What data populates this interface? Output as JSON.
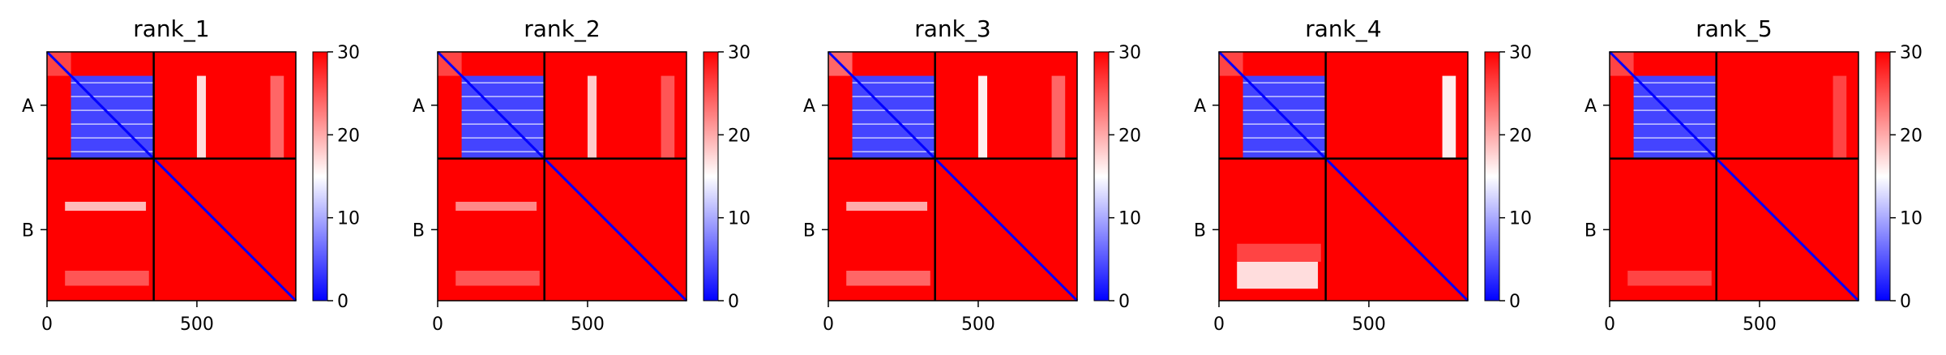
{
  "chart_data": [
    {
      "type": "heatmap",
      "title": "rank_1",
      "xlabel": "",
      "ylabel": "",
      "xlim": [
        0,
        830
      ],
      "x_ticks": [
        0,
        500
      ],
      "chain_boundary": 356,
      "chains": [
        "A",
        "B"
      ],
      "colorbar": {
        "min": 0,
        "max": 30,
        "ticks": [
          0,
          10,
          20,
          30
        ],
        "colormap": "bwr"
      },
      "regions": [
        {
          "chains": "A-A",
          "x_range": [
            80,
            356
          ],
          "y_range": [
            80,
            356
          ],
          "value": 4
        },
        {
          "chains": "A-A",
          "x_range": [
            0,
            80
          ],
          "y_range": [
            0,
            80
          ],
          "value": 26
        },
        {
          "chains": "A-B",
          "x_range": [
            500,
            530
          ],
          "y_range": [
            80,
            356
          ],
          "value": 17
        },
        {
          "chains": "A-B",
          "x_range": [
            745,
            790
          ],
          "y_range": [
            80,
            356
          ],
          "value": 24
        },
        {
          "chains": "B-A",
          "x_range": [
            60,
            330
          ],
          "y_range": [
            500,
            530
          ],
          "value": 19
        },
        {
          "chains": "B-A",
          "x_range": [
            60,
            340
          ],
          "y_range": [
            730,
            780
          ],
          "value": 25
        },
        {
          "chains": "off-diagonal background",
          "value": 30
        },
        {
          "chains": "diagonal",
          "value": 0
        }
      ]
    },
    {
      "type": "heatmap",
      "title": "rank_2",
      "xlabel": "",
      "ylabel": "",
      "xlim": [
        0,
        830
      ],
      "x_ticks": [
        0,
        500
      ],
      "chain_boundary": 356,
      "chains": [
        "A",
        "B"
      ],
      "colorbar": {
        "min": 0,
        "max": 30,
        "ticks": [
          0,
          10,
          20,
          30
        ],
        "colormap": "bwr"
      },
      "regions": [
        {
          "chains": "A-A",
          "x_range": [
            80,
            356
          ],
          "y_range": [
            80,
            356
          ],
          "value": 4
        },
        {
          "chains": "A-A",
          "x_range": [
            0,
            80
          ],
          "y_range": [
            0,
            80
          ],
          "value": 26
        },
        {
          "chains": "A-B",
          "x_range": [
            500,
            530
          ],
          "y_range": [
            80,
            356
          ],
          "value": 18
        },
        {
          "chains": "A-B",
          "x_range": [
            745,
            790
          ],
          "y_range": [
            80,
            356
          ],
          "value": 25
        },
        {
          "chains": "B-A",
          "x_range": [
            60,
            330
          ],
          "y_range": [
            500,
            530
          ],
          "value": 22
        },
        {
          "chains": "B-A",
          "x_range": [
            60,
            340
          ],
          "y_range": [
            730,
            780
          ],
          "value": 25
        },
        {
          "chains": "off-diagonal background",
          "value": 30
        },
        {
          "chains": "diagonal",
          "value": 0
        }
      ]
    },
    {
      "type": "heatmap",
      "title": "rank_3",
      "xlabel": "",
      "ylabel": "",
      "xlim": [
        0,
        830
      ],
      "x_ticks": [
        0,
        500
      ],
      "chain_boundary": 356,
      "chains": [
        "A",
        "B"
      ],
      "colorbar": {
        "min": 0,
        "max": 30,
        "ticks": [
          0,
          10,
          20,
          30
        ],
        "colormap": "bwr"
      },
      "regions": [
        {
          "chains": "A-A",
          "x_range": [
            80,
            356
          ],
          "y_range": [
            80,
            356
          ],
          "value": 4
        },
        {
          "chains": "A-A",
          "x_range": [
            0,
            80
          ],
          "y_range": [
            0,
            80
          ],
          "value": 24
        },
        {
          "chains": "A-B",
          "x_range": [
            500,
            530
          ],
          "y_range": [
            80,
            356
          ],
          "value": 16
        },
        {
          "chains": "A-B",
          "x_range": [
            745,
            790
          ],
          "y_range": [
            80,
            356
          ],
          "value": 24
        },
        {
          "chains": "B-A",
          "x_range": [
            60,
            330
          ],
          "y_range": [
            500,
            530
          ],
          "value": 20
        },
        {
          "chains": "B-A",
          "x_range": [
            60,
            340
          ],
          "y_range": [
            730,
            780
          ],
          "value": 24
        },
        {
          "chains": "off-diagonal background",
          "value": 30
        },
        {
          "chains": "diagonal",
          "value": 0
        }
      ]
    },
    {
      "type": "heatmap",
      "title": "rank_4",
      "xlabel": "",
      "ylabel": "",
      "xlim": [
        0,
        830
      ],
      "x_ticks": [
        0,
        500
      ],
      "chain_boundary": 356,
      "chains": [
        "A",
        "B"
      ],
      "colorbar": {
        "min": 0,
        "max": 30,
        "ticks": [
          0,
          10,
          20,
          30
        ],
        "colormap": "bwr"
      },
      "regions": [
        {
          "chains": "A-A",
          "x_range": [
            80,
            356
          ],
          "y_range": [
            80,
            356
          ],
          "value": 4
        },
        {
          "chains": "A-A",
          "x_range": [
            0,
            80
          ],
          "y_range": [
            0,
            80
          ],
          "value": 26
        },
        {
          "chains": "A-B",
          "x_range": [
            745,
            790
          ],
          "y_range": [
            80,
            356
          ],
          "value": 16
        },
        {
          "chains": "B-A",
          "x_range": [
            60,
            330
          ],
          "y_range": [
            700,
            790
          ],
          "value": 17
        },
        {
          "chains": "B-A",
          "x_range": [
            60,
            340
          ],
          "y_range": [
            640,
            700
          ],
          "value": 26
        },
        {
          "chains": "off-diagonal background",
          "value": 30
        },
        {
          "chains": "diagonal",
          "value": 0
        }
      ]
    },
    {
      "type": "heatmap",
      "title": "rank_5",
      "xlabel": "",
      "ylabel": "",
      "xlim": [
        0,
        830
      ],
      "x_ticks": [
        0,
        500
      ],
      "chain_boundary": 356,
      "chains": [
        "A",
        "B"
      ],
      "colorbar": {
        "min": 0,
        "max": 30,
        "ticks": [
          0,
          10,
          20,
          30
        ],
        "colormap": "bwr"
      },
      "regions": [
        {
          "chains": "A-A",
          "x_range": [
            80,
            356
          ],
          "y_range": [
            80,
            356
          ],
          "value": 4
        },
        {
          "chains": "A-A",
          "x_range": [
            0,
            80
          ],
          "y_range": [
            0,
            80
          ],
          "value": 26
        },
        {
          "chains": "A-B",
          "x_range": [
            745,
            790
          ],
          "y_range": [
            80,
            356
          ],
          "value": 26
        },
        {
          "chains": "B-A",
          "x_range": [
            60,
            340
          ],
          "y_range": [
            730,
            780
          ],
          "value": 26
        },
        {
          "chains": "off-diagonal background",
          "value": 30
        },
        {
          "chains": "diagonal",
          "value": 0
        }
      ]
    }
  ],
  "colors": {
    "cmap_min": "#0000ff",
    "cmap_mid": "#ffffff",
    "cmap_max": "#ff0000",
    "boundary_line": "#000000"
  }
}
